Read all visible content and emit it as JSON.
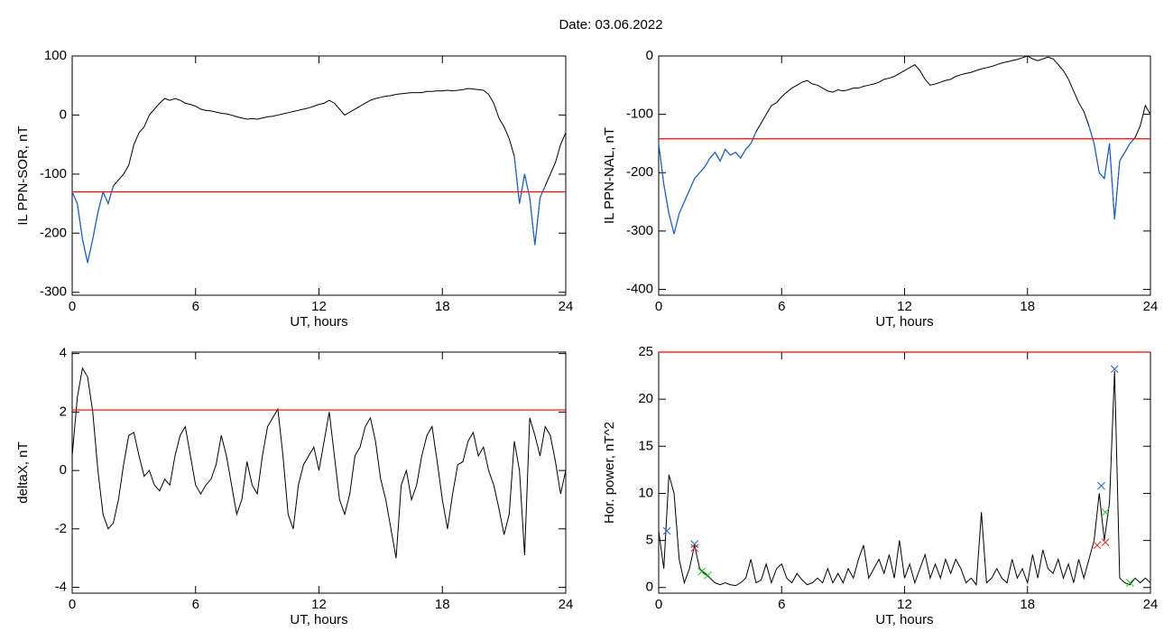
{
  "title": "Date:  03.06.2022",
  "chart_data": [
    {
      "type": "line",
      "ylabel": "IL PPN-SOR, nT",
      "xlabel": "UT, hours",
      "x": [
        0,
        0.25,
        0.5,
        0.75,
        1,
        1.25,
        1.5,
        1.75,
        2,
        2.25,
        2.5,
        2.75,
        3,
        3.25,
        3.5,
        3.75,
        4,
        4.25,
        4.5,
        4.75,
        5,
        5.25,
        5.5,
        5.75,
        6,
        6.25,
        6.5,
        6.75,
        7,
        7.25,
        7.5,
        7.75,
        8,
        8.25,
        8.5,
        8.75,
        9,
        9.25,
        9.5,
        9.75,
        10,
        10.25,
        10.5,
        10.75,
        11,
        11.25,
        11.5,
        11.75,
        12,
        12.25,
        12.5,
        12.75,
        13,
        13.25,
        13.5,
        13.75,
        14,
        14.25,
        14.5,
        14.75,
        15,
        15.25,
        15.5,
        15.75,
        16,
        16.25,
        16.5,
        16.75,
        17,
        17.25,
        17.5,
        17.75,
        18,
        18.25,
        18.5,
        18.75,
        19,
        19.25,
        19.5,
        19.75,
        20,
        20.25,
        20.5,
        20.75,
        21,
        21.25,
        21.5,
        21.75,
        22,
        22.25,
        22.5,
        22.75,
        23,
        23.25,
        23.5,
        23.75,
        24
      ],
      "series": [
        {
          "color": "#000000",
          "values": [
            -130,
            -150,
            -210,
            -250,
            -210,
            -165,
            -130,
            -150,
            -120,
            -110,
            -100,
            -85,
            -50,
            -30,
            -20,
            0,
            10,
            20,
            28,
            25,
            28,
            25,
            20,
            18,
            15,
            10,
            8,
            7,
            5,
            3,
            2,
            0,
            -3,
            -5,
            -7,
            -6,
            -7,
            -5,
            -3,
            -2,
            0,
            2,
            4,
            6,
            8,
            10,
            12,
            15,
            18,
            20,
            25,
            20,
            10,
            0,
            5,
            10,
            15,
            20,
            25,
            28,
            30,
            32,
            33,
            35,
            36,
            37,
            38,
            38,
            38,
            40,
            40,
            41,
            41,
            42,
            41,
            42,
            43,
            45,
            44,
            43,
            42,
            35,
            20,
            -5,
            -20,
            -40,
            -70,
            -150,
            -100,
            -140,
            -220,
            -140,
            -120,
            -100,
            -80,
            -50,
            -30
          ]
        }
      ],
      "threshold": -130,
      "threshold_color": "#ff0000",
      "below_color": "#1f63c6",
      "xlim": [
        0,
        24
      ],
      "xticks": [
        0,
        6,
        12,
        18,
        24
      ],
      "ylim": [
        -305,
        100
      ],
      "yticks": [
        -300,
        -200,
        -100,
        0,
        100
      ]
    },
    {
      "type": "line",
      "ylabel": "IL PPN-NAL, nT",
      "xlabel": "UT, hours",
      "x": [
        0,
        0.25,
        0.5,
        0.75,
        1,
        1.25,
        1.5,
        1.75,
        2,
        2.25,
        2.5,
        2.75,
        3,
        3.25,
        3.5,
        3.75,
        4,
        4.25,
        4.5,
        4.75,
        5,
        5.25,
        5.5,
        5.75,
        6,
        6.25,
        6.5,
        6.75,
        7,
        7.25,
        7.5,
        7.75,
        8,
        8.25,
        8.5,
        8.75,
        9,
        9.25,
        9.5,
        9.75,
        10,
        10.25,
        10.5,
        10.75,
        11,
        11.25,
        11.5,
        11.75,
        12,
        12.25,
        12.5,
        12.75,
        13,
        13.25,
        13.5,
        13.75,
        14,
        14.25,
        14.5,
        14.75,
        15,
        15.25,
        15.5,
        15.75,
        16,
        16.25,
        16.5,
        16.75,
        17,
        17.25,
        17.5,
        17.75,
        18,
        18.25,
        18.5,
        18.75,
        19,
        19.25,
        19.5,
        19.75,
        20,
        20.25,
        20.5,
        20.75,
        21,
        21.25,
        21.5,
        21.75,
        22,
        22.25,
        22.5,
        22.75,
        23,
        23.25,
        23.5,
        23.75,
        24
      ],
      "series": [
        {
          "color": "#000000",
          "values": [
            -150,
            -220,
            -270,
            -305,
            -270,
            -250,
            -230,
            -210,
            -200,
            -190,
            -175,
            -165,
            -180,
            -160,
            -170,
            -165,
            -175,
            -160,
            -150,
            -130,
            -115,
            -100,
            -85,
            -80,
            -70,
            -62,
            -55,
            -50,
            -45,
            -42,
            -48,
            -50,
            -55,
            -60,
            -62,
            -58,
            -60,
            -58,
            -55,
            -55,
            -52,
            -50,
            -48,
            -45,
            -40,
            -38,
            -35,
            -30,
            -25,
            -20,
            -15,
            -25,
            -40,
            -50,
            -48,
            -45,
            -42,
            -40,
            -35,
            -32,
            -30,
            -28,
            -25,
            -22,
            -20,
            -18,
            -15,
            -12,
            -10,
            -8,
            -6,
            -3,
            0,
            -5,
            -8,
            -5,
            -2,
            -5,
            -15,
            -25,
            -40,
            -60,
            -80,
            -95,
            -120,
            -150,
            -200,
            -210,
            -150,
            -280,
            -180,
            -165,
            -150,
            -140,
            -120,
            -85,
            -100
          ]
        }
      ],
      "threshold": -142,
      "threshold_color": "#ff0000",
      "below_color": "#1f63c6",
      "xlim": [
        0,
        24
      ],
      "xticks": [
        0,
        6,
        12,
        18,
        24
      ],
      "ylim": [
        -410,
        0
      ],
      "yticks": [
        -400,
        -300,
        -200,
        -100,
        0
      ]
    },
    {
      "type": "line",
      "ylabel": "deltaX, nT",
      "xlabel": "UT, hours",
      "x": [
        0,
        0.25,
        0.5,
        0.75,
        1,
        1.25,
        1.5,
        1.75,
        2,
        2.25,
        2.5,
        2.75,
        3,
        3.25,
        3.5,
        3.75,
        4,
        4.25,
        4.5,
        4.75,
        5,
        5.25,
        5.5,
        5.75,
        6,
        6.25,
        6.5,
        6.75,
        7,
        7.25,
        7.5,
        7.75,
        8,
        8.25,
        8.5,
        8.75,
        9,
        9.25,
        9.5,
        9.75,
        10,
        10.25,
        10.5,
        10.75,
        11,
        11.25,
        11.5,
        11.75,
        12,
        12.25,
        12.5,
        12.75,
        13,
        13.25,
        13.5,
        13.75,
        14,
        14.25,
        14.5,
        14.75,
        15,
        15.25,
        15.5,
        15.75,
        16,
        16.25,
        16.5,
        16.75,
        17,
        17.25,
        17.5,
        17.75,
        18,
        18.25,
        18.5,
        18.75,
        19,
        19.25,
        19.5,
        19.75,
        20,
        20.25,
        20.5,
        20.75,
        21,
        21.25,
        21.5,
        21.75,
        22,
        22.25,
        22.5,
        22.75,
        23,
        23.25,
        23.5,
        23.75,
        24
      ],
      "series": [
        {
          "color": "#000000",
          "values": [
            0.5,
            2.5,
            3.5,
            3.2,
            2,
            0,
            -1.5,
            -2,
            -1.8,
            -1,
            0.2,
            1.2,
            1.3,
            0.5,
            -0.2,
            0,
            -0.5,
            -0.7,
            -0.3,
            -0.5,
            0.5,
            1.2,
            1.5,
            0.5,
            -0.5,
            -0.8,
            -0.5,
            -0.3,
            0.2,
            1.2,
            0.5,
            -0.5,
            -1.5,
            -1,
            0.3,
            -0.5,
            -0.8,
            0.5,
            1.5,
            1.8,
            2.1,
            0.5,
            -1.5,
            -2,
            -0.5,
            0.2,
            0.5,
            0.8,
            0,
            1,
            2,
            0.5,
            -1,
            -1.5,
            -0.8,
            0.5,
            0.8,
            1.5,
            1.8,
            1,
            -0.3,
            -1,
            -2,
            -3,
            -0.5,
            0,
            -1,
            -0.5,
            0.5,
            1.2,
            1.5,
            0.3,
            -1,
            -2,
            -0.8,
            0.2,
            0.3,
            1,
            1.3,
            0.5,
            0.8,
            0,
            -0.5,
            -1.3,
            -2.2,
            -1.5,
            1,
            0,
            -2.9,
            1.8,
            1.2,
            0.5,
            1.5,
            1.2,
            0.3,
            -0.8,
            0
          ]
        }
      ],
      "threshold": 2.07,
      "threshold_color": "#ff0000",
      "xlim": [
        0,
        24
      ],
      "xticks": [
        0,
        6,
        12,
        18,
        24
      ],
      "ylim": [
        -4.2,
        4.05
      ],
      "yticks": [
        -4,
        -2,
        0,
        2,
        4
      ]
    },
    {
      "type": "line",
      "ylabel": "Hor. power, nT^2",
      "xlabel": "UT, hours",
      "x": [
        0,
        0.25,
        0.5,
        0.75,
        1,
        1.25,
        1.5,
        1.75,
        2,
        2.25,
        2.5,
        2.75,
        3,
        3.25,
        3.5,
        3.75,
        4,
        4.25,
        4.5,
        4.75,
        5,
        5.25,
        5.5,
        5.75,
        6,
        6.25,
        6.5,
        6.75,
        7,
        7.25,
        7.5,
        7.75,
        8,
        8.25,
        8.5,
        8.75,
        9,
        9.25,
        9.5,
        9.75,
        10,
        10.25,
        10.5,
        10.75,
        11,
        11.25,
        11.5,
        11.75,
        12,
        12.25,
        12.5,
        12.75,
        13,
        13.25,
        13.5,
        13.75,
        14,
        14.25,
        14.5,
        14.75,
        15,
        15.25,
        15.5,
        15.75,
        16,
        16.25,
        16.5,
        16.75,
        17,
        17.25,
        17.5,
        17.75,
        18,
        18.25,
        18.5,
        18.75,
        19,
        19.25,
        19.5,
        19.75,
        20,
        20.25,
        20.5,
        20.75,
        21,
        21.25,
        21.5,
        21.75,
        22,
        22.25,
        22.5,
        22.75,
        23,
        23.25,
        23.5,
        23.75,
        24
      ],
      "series": [
        {
          "color": "#000000",
          "values": [
            6,
            2,
            12,
            10,
            3,
            0.5,
            2,
            4.5,
            2,
            1.5,
            1,
            0.5,
            0.3,
            0.5,
            0.3,
            0.2,
            0.5,
            1,
            3,
            0.5,
            0.8,
            2.5,
            0.5,
            2,
            2.5,
            1,
            0.5,
            1.5,
            0.8,
            0.3,
            0.5,
            1,
            0.5,
            2,
            0.5,
            1.5,
            0.5,
            2,
            1,
            3,
            4.5,
            1,
            2,
            3,
            1.5,
            3.5,
            1,
            5,
            1,
            2.5,
            0.5,
            2,
            3.5,
            1,
            2.5,
            1,
            3,
            1.5,
            3,
            2,
            0.5,
            1,
            0.3,
            8,
            0.5,
            1,
            2,
            1,
            0.5,
            3,
            1,
            2,
            0.5,
            3.5,
            1,
            4,
            2,
            1.5,
            3,
            1,
            2.5,
            0.5,
            3,
            1,
            3,
            5,
            10,
            5,
            9,
            23,
            1,
            0.5,
            0.3,
            1,
            0.5,
            1,
            0.5
          ]
        }
      ],
      "markers": [
        {
          "color": "#1f63c6",
          "x": [
            0.4,
            1.75,
            21.6,
            22.25
          ],
          "values": [
            6,
            4.6,
            10.8,
            23.2
          ]
        },
        {
          "color": "#e0201c",
          "x": [
            1.75,
            21.4,
            21.8
          ],
          "values": [
            4.2,
            4.5,
            4.8
          ]
        },
        {
          "color": "#22c022",
          "x": [
            2.1,
            2.4,
            21.8,
            23
          ],
          "values": [
            1.7,
            1.3,
            8,
            0.5
          ]
        }
      ],
      "threshold": 25,
      "threshold_color": "#ff0000",
      "xlim": [
        0,
        24
      ],
      "xticks": [
        0,
        6,
        12,
        18,
        24
      ],
      "ylim": [
        -0.6,
        25
      ],
      "yticks": [
        0,
        5,
        10,
        15,
        20,
        25
      ]
    }
  ]
}
